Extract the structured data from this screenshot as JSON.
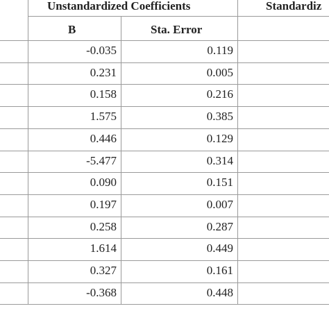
{
  "header": {
    "group_label": "Unstandardized Coefficients",
    "group_label_2": "Standardiz",
    "col_b": "B",
    "col_se": "Sta. Error"
  },
  "rows": [
    {
      "b": "-0.035",
      "se": "0.119"
    },
    {
      "b": "0.231",
      "se": "0.005"
    },
    {
      "b": "0.158",
      "se": "0.216"
    },
    {
      "b": "1.575",
      "se": "0.385"
    },
    {
      "b": "0.446",
      "se": "0.129"
    },
    {
      "b": "-5.477",
      "se": "0.314"
    },
    {
      "b": "0.090",
      "se": "0.151"
    },
    {
      "b": "0.197",
      "se": "0.007"
    },
    {
      "b": "0.258",
      "se": "0.287"
    },
    {
      "b": "1.614",
      "se": "0.449"
    },
    {
      "b": "0.327",
      "se": "0.161"
    },
    {
      "b": "-0.368",
      "se": "0.448"
    }
  ]
}
